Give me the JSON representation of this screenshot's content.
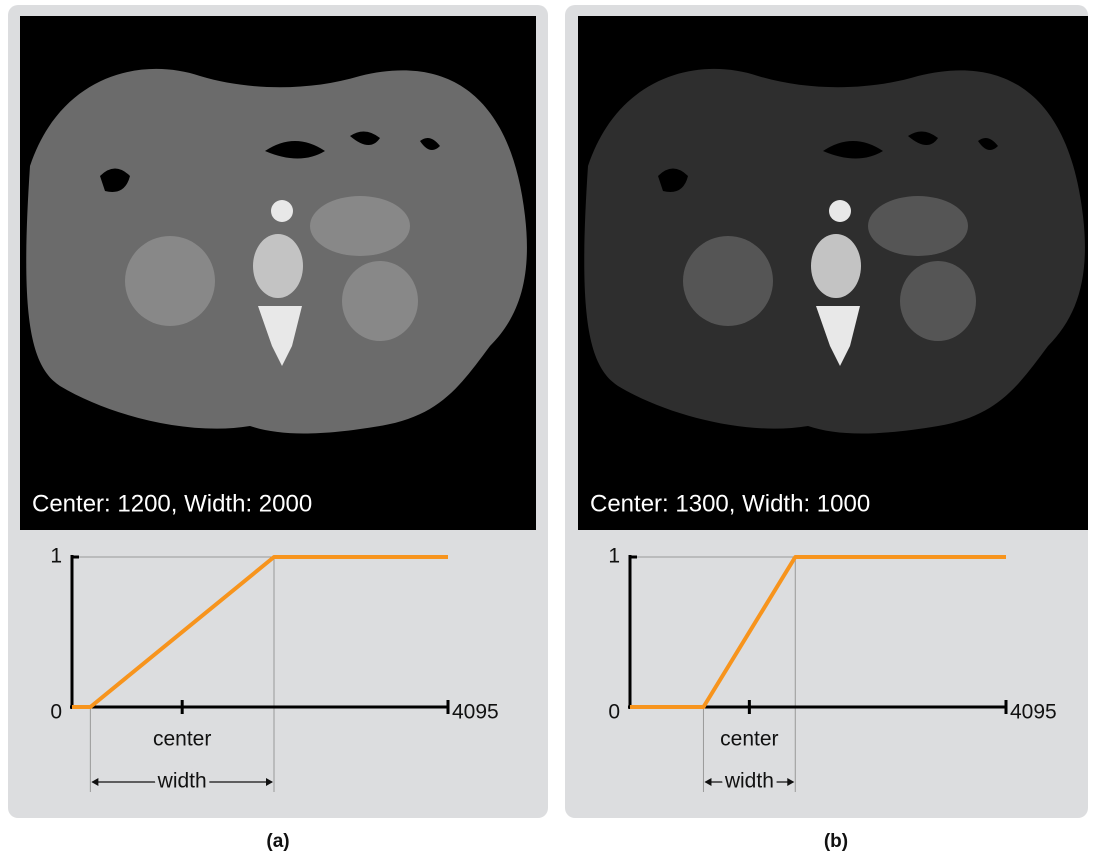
{
  "chart_data": [
    {
      "type": "line",
      "image_caption": "Center: 1200, Width: 2000",
      "panel_label": "(a)",
      "x": [
        0,
        200,
        2200,
        4095
      ],
      "values": [
        0,
        0,
        1,
        1
      ],
      "color": "#f7941d",
      "xlim": [
        0,
        4095
      ],
      "xticks": [
        {
          "value": 1200,
          "label": "center"
        },
        4095
      ],
      "ylim": [
        0,
        1
      ],
      "yticks": [
        0,
        1
      ],
      "annotations": [
        {
          "text": "width",
          "x_from": 200,
          "x_to": 2200
        }
      ]
    },
    {
      "type": "line",
      "image_caption": "Center: 1300, Width: 1000",
      "panel_label": "(b)",
      "x": [
        0,
        800,
        1800,
        4095
      ],
      "values": [
        0,
        0,
        1,
        1
      ],
      "color": "#f7941d",
      "xlim": [
        0,
        4095
      ],
      "xticks": [
        {
          "value": 1300,
          "label": "center"
        },
        4095
      ],
      "ylim": [
        0,
        1
      ],
      "yticks": [
        0,
        1
      ],
      "annotations": [
        {
          "text": "width",
          "x_from": 800,
          "x_to": 1800
        }
      ]
    }
  ]
}
